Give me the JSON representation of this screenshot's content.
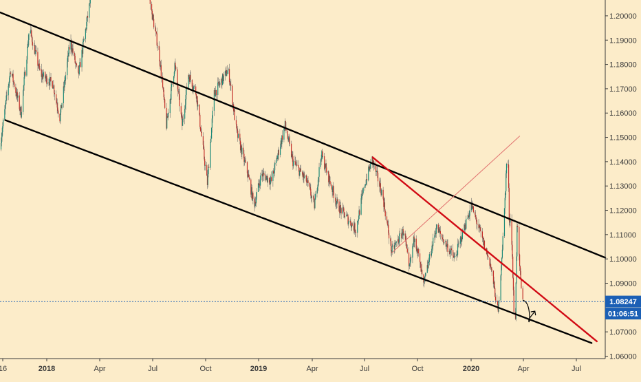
{
  "chart_data": {
    "type": "candlestick",
    "instrument_hint": "EURUSD daily",
    "x_ticks": [
      "16",
      "2018",
      "Apr",
      "Jul",
      "Oct",
      "2019",
      "Apr",
      "Jul",
      "Oct",
      "2020",
      "Apr",
      "Jul"
    ],
    "x_tick_years": [
      "2018",
      "2019",
      "2020"
    ],
    "y_ticks": [
      "1.20000",
      "1.19000",
      "1.18000",
      "1.17000",
      "1.16000",
      "1.15000",
      "1.14000",
      "1.13000",
      "1.12000",
      "1.11000",
      "1.10000",
      "1.09000",
      "1.07000",
      "1.06000"
    ],
    "ylim": [
      1.059,
      1.2065
    ],
    "xlim": [
      "2017-07-15",
      "2020-09-10"
    ],
    "price_path": [
      {
        "d": "2017-07-15",
        "p": 1.145
      },
      {
        "d": "2017-08-05",
        "p": 1.178
      },
      {
        "d": "2017-08-25",
        "p": 1.16
      },
      {
        "d": "2017-09-10",
        "p": 1.195
      },
      {
        "d": "2017-10-01",
        "p": 1.176
      },
      {
        "d": "2017-10-25",
        "p": 1.172
      },
      {
        "d": "2017-11-07",
        "p": 1.158
      },
      {
        "d": "2017-11-27",
        "p": 1.19
      },
      {
        "d": "2017-12-12",
        "p": 1.175
      },
      {
        "d": "2017-12-31",
        "p": 1.201
      },
      {
        "d": "2018-01-25",
        "p": 1.235
      },
      {
        "d": "2018-02-16",
        "p": 1.252
      },
      {
        "d": "2018-03-10",
        "p": 1.232
      },
      {
        "d": "2018-04-17",
        "p": 1.24
      },
      {
        "d": "2018-04-28",
        "p": 1.205
      },
      {
        "d": "2018-05-15",
        "p": 1.185
      },
      {
        "d": "2018-05-29",
        "p": 1.155
      },
      {
        "d": "2018-06-14",
        "p": 1.18
      },
      {
        "d": "2018-06-28",
        "p": 1.155
      },
      {
        "d": "2018-07-10",
        "p": 1.176
      },
      {
        "d": "2018-07-25",
        "p": 1.168
      },
      {
        "d": "2018-08-15",
        "p": 1.131
      },
      {
        "d": "2018-08-28",
        "p": 1.168
      },
      {
        "d": "2018-09-24",
        "p": 1.178
      },
      {
        "d": "2018-10-10",
        "p": 1.152
      },
      {
        "d": "2018-10-31",
        "p": 1.135
      },
      {
        "d": "2018-11-12",
        "p": 1.122
      },
      {
        "d": "2018-11-26",
        "p": 1.135
      },
      {
        "d": "2018-12-15",
        "p": 1.132
      },
      {
        "d": "2019-01-10",
        "p": 1.155
      },
      {
        "d": "2019-01-25",
        "p": 1.14
      },
      {
        "d": "2019-02-20",
        "p": 1.132
      },
      {
        "d": "2019-03-07",
        "p": 1.122
      },
      {
        "d": "2019-03-20",
        "p": 1.143
      },
      {
        "d": "2019-04-20",
        "p": 1.122
      },
      {
        "d": "2019-05-25",
        "p": 1.112
      },
      {
        "d": "2019-06-10",
        "p": 1.13
      },
      {
        "d": "2019-06-25",
        "p": 1.141
      },
      {
        "d": "2019-07-15",
        "p": 1.126
      },
      {
        "d": "2019-08-01",
        "p": 1.103
      },
      {
        "d": "2019-08-25",
        "p": 1.112
      },
      {
        "d": "2019-09-03",
        "p": 1.095
      },
      {
        "d": "2019-09-14",
        "p": 1.11
      },
      {
        "d": "2019-10-01",
        "p": 1.089
      },
      {
        "d": "2019-10-25",
        "p": 1.113
      },
      {
        "d": "2019-11-29",
        "p": 1.1
      },
      {
        "d": "2019-12-31",
        "p": 1.122
      },
      {
        "d": "2020-01-15",
        "p": 1.112
      },
      {
        "d": "2020-02-05",
        "p": 1.098
      },
      {
        "d": "2020-02-20",
        "p": 1.078
      },
      {
        "d": "2020-03-02",
        "p": 1.115
      },
      {
        "d": "2020-03-09",
        "p": 1.149
      },
      {
        "d": "2020-03-12",
        "p": 1.117
      },
      {
        "d": "2020-03-16",
        "p": 1.115
      },
      {
        "d": "2020-03-23",
        "p": 1.064
      },
      {
        "d": "2020-03-27",
        "p": 1.115
      },
      {
        "d": "2020-04-01",
        "p": 1.096
      },
      {
        "d": "2020-04-06",
        "p": 1.082
      }
    ],
    "trendlines": [
      {
        "name": "channel-upper",
        "color": "#000000",
        "points": [
          {
            "d": "2017-07-15",
            "p": 1.2014
          },
          {
            "d": "2020-09-10",
            "p": 1.1005
          }
        ]
      },
      {
        "name": "channel-lower",
        "color": "#000000",
        "points": [
          {
            "d": "2017-07-25",
            "p": 1.1571
          },
          {
            "d": "2020-08-15",
            "p": 1.0654
          }
        ]
      },
      {
        "name": "resistance",
        "color": "#d10a14",
        "points": [
          {
            "d": "2019-06-25",
            "p": 1.1418
          },
          {
            "d": "2020-08-25",
            "p": 1.0661
          }
        ]
      },
      {
        "name": "diagonal",
        "color": "#e0706e",
        "points": [
          {
            "d": "2019-08-01",
            "p": 1.1026
          },
          {
            "d": "2020-03-31",
            "p": 1.1505
          }
        ]
      }
    ],
    "projection": {
      "color": "#000000",
      "points": [
        {
          "d": "2020-04-06",
          "p": 1.083
        },
        {
          "d": "2020-04-14",
          "p": 1.0805
        },
        {
          "d": "2020-04-21",
          "p": 1.0742
        },
        {
          "d": "2020-04-29",
          "p": 1.0785
        }
      ]
    },
    "current_price": {
      "value": 1.08247,
      "label": "1.08247",
      "countdown": "01:06:51"
    },
    "colors": {
      "background": "#fcecc9",
      "up": "#1b8a78",
      "down": "#c3302a",
      "wick": "#6d6d6d",
      "price_line": "#1b5fb5",
      "axis_text": "#3a3a3a"
    }
  }
}
